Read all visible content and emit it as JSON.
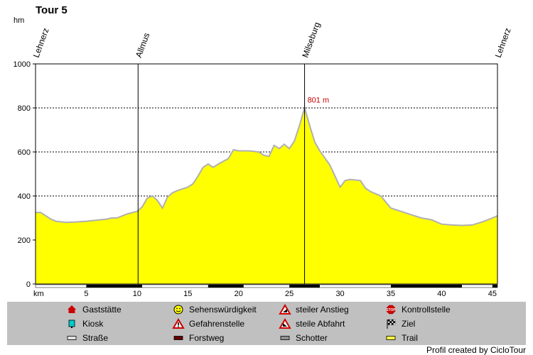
{
  "chart_data": {
    "type": "area",
    "title": "Tour 5",
    "ylabel": "hm",
    "xlabel": "km",
    "ylim": [
      0,
      1000
    ],
    "xlim": [
      0,
      45.5
    ],
    "yticks": [
      0,
      200,
      400,
      600,
      800,
      1000
    ],
    "xticks": [
      5,
      10,
      15,
      20,
      25,
      30,
      35,
      40,
      45
    ],
    "grid": true,
    "fill_color": "#ffff00",
    "line_color": "#b0b0b0",
    "series": [
      {
        "x": [
          0,
          0.5,
          1,
          1.5,
          2,
          3,
          4,
          5,
          6,
          7,
          7.5,
          8,
          9,
          10,
          10.5,
          11,
          11.5,
          12,
          12.5,
          13,
          13.5,
          14,
          15,
          15.5,
          16,
          16.5,
          17,
          17.5,
          18,
          19,
          19.5,
          20,
          21,
          22,
          22.5,
          23,
          23.5,
          24,
          24.5,
          25,
          25.5,
          26,
          26.5,
          27,
          27.5,
          28,
          29,
          29.5,
          30,
          30.5,
          31,
          32,
          32.5,
          33,
          34,
          35,
          36,
          37,
          38,
          39,
          40,
          41,
          42,
          43,
          44,
          45,
          45.5
        ],
        "y": [
          325,
          325,
          310,
          295,
          285,
          280,
          282,
          285,
          290,
          295,
          300,
          300,
          318,
          330,
          350,
          390,
          400,
          380,
          345,
          395,
          415,
          425,
          440,
          455,
          490,
          530,
          545,
          530,
          545,
          570,
          610,
          605,
          605,
          600,
          585,
          580,
          630,
          615,
          635,
          615,
          650,
          720,
          801,
          720,
          645,
          605,
          540,
          490,
          440,
          470,
          475,
          470,
          435,
          420,
          400,
          345,
          330,
          315,
          300,
          292,
          272,
          268,
          266,
          268,
          282,
          300,
          310
        ]
      }
    ],
    "waypoints": [
      {
        "km": 0,
        "label": "Lehnerz"
      },
      {
        "km": 10.1,
        "label": "Allmus"
      },
      {
        "km": 26.5,
        "label": "Milseburg"
      },
      {
        "km": 45.5,
        "label": "Lehnerz"
      }
    ],
    "peak_annotation": {
      "km": 26.5,
      "value": 801,
      "text": "801 m"
    },
    "surface_bar": [
      {
        "start": 0,
        "end": 5,
        "type": "road"
      },
      {
        "start": 5,
        "end": 10.5,
        "type": "forest"
      },
      {
        "start": 10.5,
        "end": 17,
        "type": "road"
      },
      {
        "start": 17,
        "end": 20.5,
        "type": "forest"
      },
      {
        "start": 20.5,
        "end": 25,
        "type": "road"
      },
      {
        "start": 25,
        "end": 28,
        "type": "forest"
      },
      {
        "start": 28,
        "end": 35,
        "type": "road"
      },
      {
        "start": 35,
        "end": 42,
        "type": "forest"
      },
      {
        "start": 42,
        "end": 45,
        "type": "road"
      },
      {
        "start": 45,
        "end": 45.5,
        "type": "forest"
      }
    ],
    "surface_colors": {
      "road": "#ffffff",
      "forest": "#000000"
    }
  },
  "legend": [
    {
      "label": "Gaststätte",
      "icon": "house-icon",
      "color": "#cc0000"
    },
    {
      "label": "Sehenswürdigkeit",
      "icon": "smiley-icon",
      "color": "#ffff00"
    },
    {
      "label": "steiler Anstieg",
      "icon": "steep-climb-icon",
      "color": "#cc0000"
    },
    {
      "label": "Kontrollstelle",
      "icon": "stop-icon",
      "color": "#cc0000"
    },
    {
      "label": "Kiosk",
      "icon": "cup-icon",
      "color": "#00cccc"
    },
    {
      "label": "Gefahrenstelle",
      "icon": "warning-icon",
      "color": "#cc0000"
    },
    {
      "label": "steile Abfahrt",
      "icon": "steep-descent-icon",
      "color": "#cc0000"
    },
    {
      "label": "Ziel",
      "icon": "checkered-flag-icon",
      "color": "#000000"
    },
    {
      "label": "Straße",
      "icon": "swatch-icon",
      "color": "#e0e0e0"
    },
    {
      "label": "Forstweg",
      "icon": "swatch-icon",
      "color": "#660000"
    },
    {
      "label": "Schotter",
      "icon": "swatch-icon",
      "color": "#909090"
    },
    {
      "label": "Trail",
      "icon": "swatch-icon",
      "color": "#ffff44"
    }
  ],
  "credit": "Profil created by CicloTour",
  "colors": {
    "legend_bg": "#c0c0c0",
    "peak_label": "#cc0000"
  }
}
